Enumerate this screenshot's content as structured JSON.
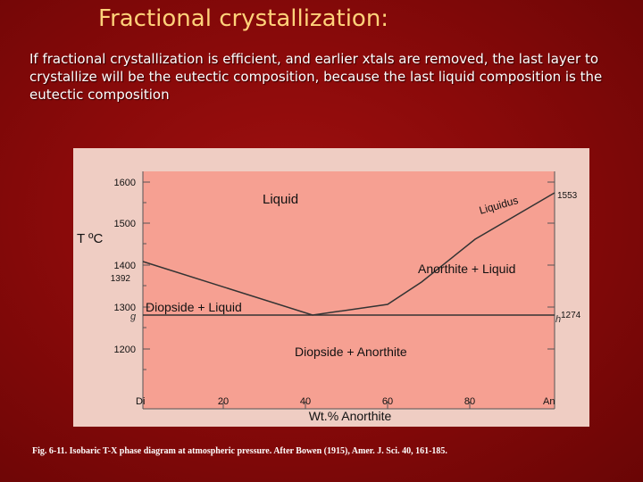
{
  "slide": {
    "title": "Fractional crystallization:",
    "body": "If fractional crystallization is efficient, and earlier xtals are removed, the last layer to crystallize will be the eutectic composition, because the last liquid composition is the eutectic composition",
    "caption": "Fig. 6-11. Isobaric T-X phase diagram at atmospheric pressure. After Bowen (1915), Amer. J. Sci. 40, 161-185."
  },
  "diagram": {
    "colors": {
      "field": "#f6a092",
      "frame": "#efcdc3",
      "line": "#333333"
    },
    "y_axis_label": "T ºC",
    "x_axis_label": "Wt.% Anorthite",
    "y_ticks": [
      "1600",
      "1500",
      "1400",
      "1392",
      "1300",
      "1200"
    ],
    "x_ticks": [
      "Di",
      "20",
      "40",
      "60",
      "80",
      "An"
    ],
    "regions": {
      "liquid": "Liquid",
      "liquidus": "Liquidus",
      "anorthite_liquid": "Anorthite + Liquid",
      "diopside_liquid": "Diopside + Liquid",
      "diopside_anorthite": "Diopside + Anorthite"
    },
    "points": {
      "g": "g",
      "h": "h",
      "t_an": "1553",
      "t_eutectic": "1274"
    }
  }
}
